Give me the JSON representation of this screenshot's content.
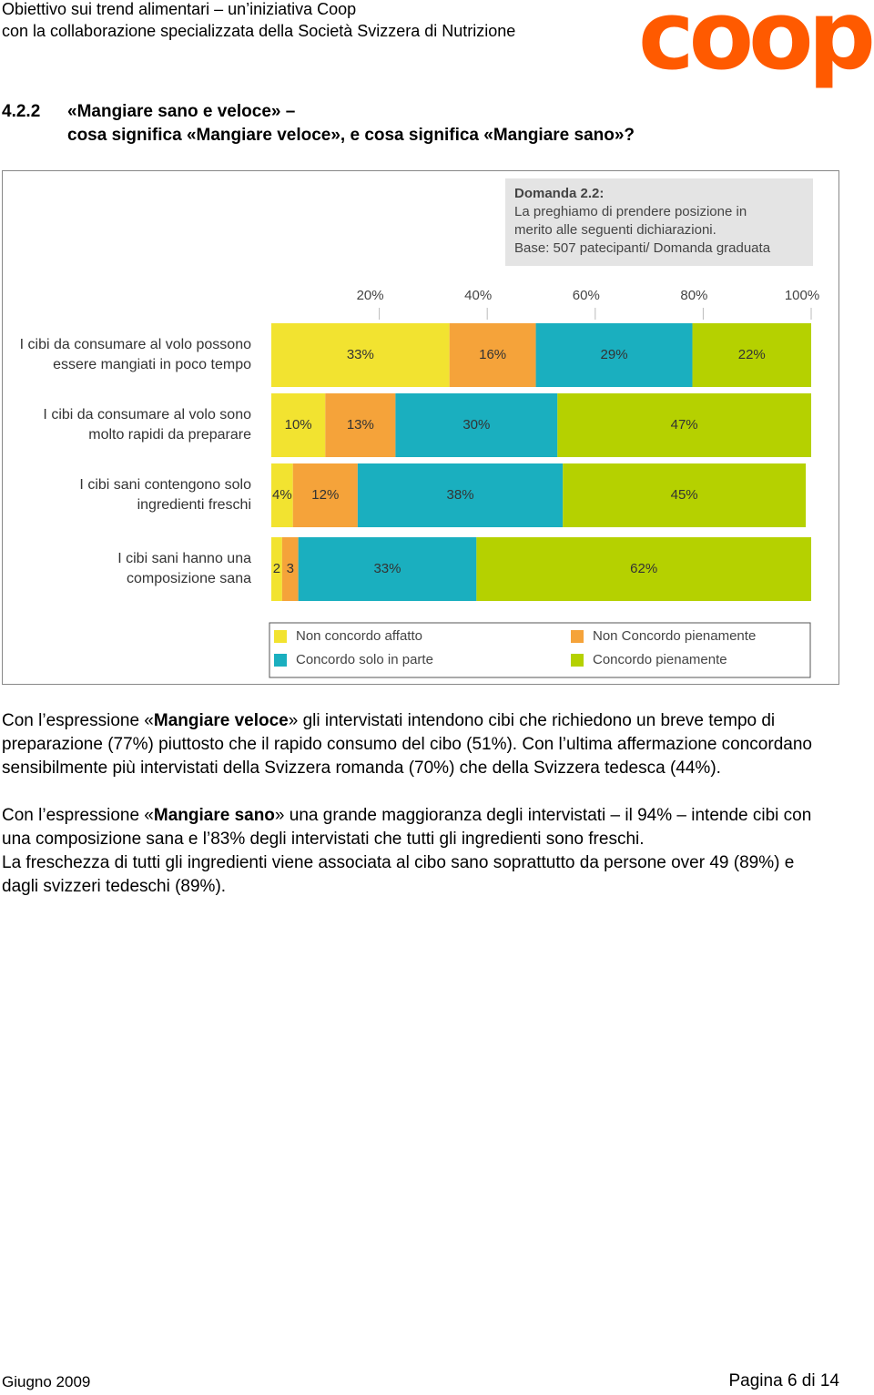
{
  "header": {
    "line1": "Obiettivo sui trend alimentari – un’iniziativa Coop",
    "line2": "con la collaborazione specializzata della Società Svizzera di Nutrizione",
    "logo": "coop"
  },
  "section": {
    "number": "4.2.2",
    "title_line1": "«Mangiare sano e veloce» –",
    "title_line2": "cosa significa «Mangiare veloce», e cosa significa «Mangiare sano»?"
  },
  "chart_data": {
    "type": "stacked-bar-horizontal",
    "annotations": [
      "Domanda 2.2:",
      "La preghiamo di prendere posizione in",
      "merito alle seguenti dichiarazioni.",
      "Base: 507 patecipanti/ Domanda graduata"
    ],
    "categories": [
      "I cibi da consumare al volo possono\nessere mangiati in poco tempo",
      "I cibi da consumare al volo sono\nmolto rapidi da preparare",
      "I cibi sani contengono solo\ningredienti freschi",
      "I cibi sani hanno una\ncomposizione sana"
    ],
    "xlim": [
      0,
      100
    ],
    "xticks": [
      {
        "value": 20,
        "label": "20%"
      },
      {
        "value": 40,
        "label": "40%"
      },
      {
        "value": 60,
        "label": "60%"
      },
      {
        "value": 80,
        "label": "80%"
      },
      {
        "value": 100,
        "label": "100%"
      }
    ],
    "series": [
      {
        "name": "Non concordo affatto",
        "color": "#f2e330",
        "values": [
          33,
          10,
          4,
          2
        ],
        "value_labels": [
          "33%",
          "10%",
          "4%",
          "2"
        ]
      },
      {
        "name": "Non Concordo pienamente",
        "color": "#f5a33a",
        "values": [
          16,
          13,
          12,
          3
        ],
        "value_labels": [
          "16%",
          "13%",
          "12%",
          "3"
        ]
      },
      {
        "name": "Concordo solo in parte",
        "color": "#1aafbf",
        "values": [
          29,
          30,
          38,
          33
        ],
        "value_labels": [
          "29%",
          "30%",
          "38%",
          "33%"
        ]
      },
      {
        "name": "Concordo pienamente",
        "color": "#b5d100",
        "values": [
          22,
          47,
          45,
          62
        ],
        "value_labels": [
          "22%",
          "47%",
          "45%",
          "62%"
        ]
      }
    ]
  },
  "paragraphs": [
    [
      {
        "text": "Con l’espressione «"
      },
      {
        "text": "Mangiare veloce",
        "bold": true
      },
      {
        "text": "» gli intervistati intendono cibi che richiedono un breve tempo di preparazione (77%) piuttosto che il rapido consumo del cibo (51%). Con l’ultima affermazione concordano sensibilmente più intervistati della Svizzera romanda (70%) che della Svizzera tedesca (44%)."
      }
    ],
    [
      {
        "text": "Con l’espressione «"
      },
      {
        "text": "Mangiare sano",
        "bold": true
      },
      {
        "text": "» una grande maggioranza degli intervistati – il 94% – intende cibi con una composizione sana e l’83% degli intervistati che tutti gli ingredienti sono freschi."
      }
    ],
    [
      {
        "text": "La freschezza di tutti gli ingredienti viene associata al cibo sano soprattutto da persone over 49 (89%) e dagli svizzeri tedeschi (89%)."
      }
    ]
  ],
  "footer": {
    "date": "Giugno 2009",
    "page": "Pagina 6 di 14"
  }
}
